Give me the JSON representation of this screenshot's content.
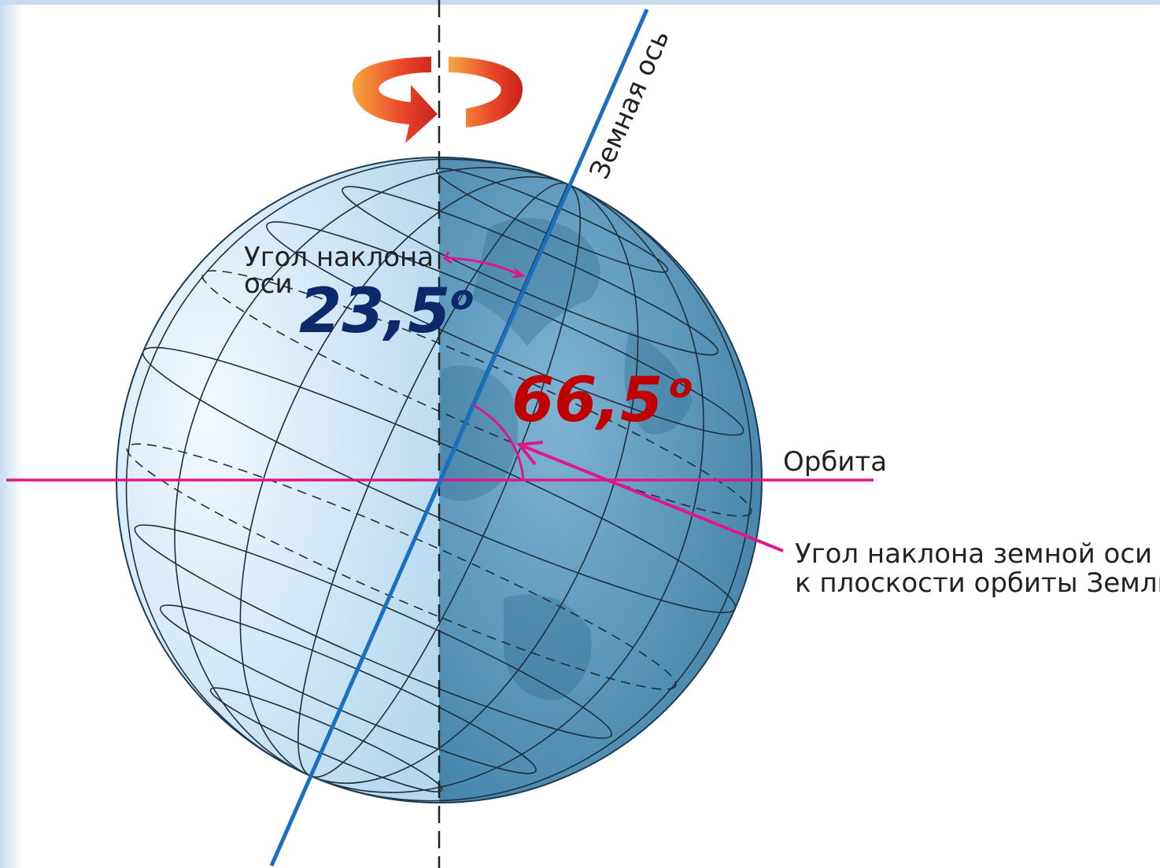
{
  "axis_label": "Земная ось",
  "tilt_label": {
    "line1": "Угол наклона",
    "line2": "оси"
  },
  "angle_axis": {
    "value": "23,5",
    "degree": "o"
  },
  "angle_orbit": {
    "value": "66,5",
    "degree": "o"
  },
  "orbit_label": "Орбита",
  "orbit_angle_label": {
    "line1": "Угол наклона земной оси",
    "line2": "к плоскости орбиты Земли"
  }
}
